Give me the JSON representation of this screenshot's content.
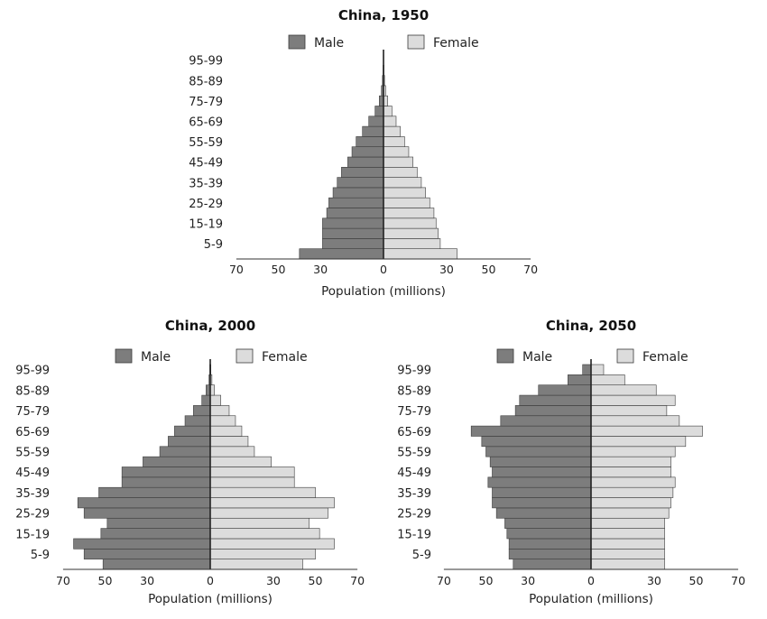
{
  "chart_data": [
    {
      "type": "bar",
      "orientation": "horizontal-pyramid",
      "title": "China, 1950",
      "xlabel": "Population (millions)",
      "ylabel": "",
      "xlim": [
        -70,
        70
      ],
      "xticks": [
        70,
        50,
        30,
        0,
        30,
        50,
        70
      ],
      "grid": false,
      "legend": {
        "position": "top",
        "entries": [
          "Male",
          "Female"
        ]
      },
      "categories": [
        "0-4",
        "5-9",
        "10-14",
        "15-19",
        "20-24",
        "25-29",
        "30-34",
        "35-39",
        "40-44",
        "45-49",
        "50-54",
        "55-59",
        "60-64",
        "65-69",
        "70-74",
        "75-79",
        "80-84",
        "85-89",
        "90-94",
        "95-99"
      ],
      "category_labels_shown": [
        "5-9",
        "15-19",
        "25-29",
        "35-39",
        "45-49",
        "55-59",
        "65-69",
        "75-79",
        "85-89",
        "95-99"
      ],
      "series": [
        {
          "name": "Male",
          "values": [
            40,
            29,
            29,
            29,
            27,
            26,
            24,
            22,
            20,
            17,
            15,
            13,
            10,
            7,
            4,
            2,
            1,
            0.5,
            0.2,
            0.1
          ]
        },
        {
          "name": "Female",
          "values": [
            35,
            27,
            26,
            25,
            24,
            22,
            20,
            18,
            16,
            14,
            12,
            10,
            8,
            6,
            4,
            2,
            1,
            0.5,
            0.2,
            0.1
          ]
        }
      ]
    },
    {
      "type": "bar",
      "orientation": "horizontal-pyramid",
      "title": "China, 2000",
      "xlabel": "Population (millions)",
      "ylabel": "",
      "xlim": [
        -70,
        70
      ],
      "xticks": [
        70,
        50,
        30,
        0,
        30,
        50,
        70
      ],
      "grid": false,
      "legend": {
        "position": "top",
        "entries": [
          "Male",
          "Female"
        ]
      },
      "categories": [
        "0-4",
        "5-9",
        "10-14",
        "15-19",
        "20-24",
        "25-29",
        "30-34",
        "35-39",
        "40-44",
        "45-49",
        "50-54",
        "55-59",
        "60-64",
        "65-69",
        "70-74",
        "75-79",
        "80-84",
        "85-89",
        "90-94",
        "95-99"
      ],
      "category_labels_shown": [
        "5-9",
        "15-19",
        "25-29",
        "35-39",
        "45-49",
        "55-59",
        "65-69",
        "75-79",
        "85-89",
        "95-99"
      ],
      "series": [
        {
          "name": "Male",
          "values": [
            51,
            60,
            65,
            52,
            49,
            60,
            63,
            53,
            42,
            42,
            32,
            24,
            20,
            17,
            12,
            8,
            4,
            2,
            0.6,
            0.2
          ]
        },
        {
          "name": "Female",
          "values": [
            44,
            50,
            59,
            52,
            47,
            56,
            59,
            50,
            40,
            40,
            29,
            21,
            18,
            15,
            12,
            9,
            5,
            2,
            0.8,
            0.3
          ]
        }
      ]
    },
    {
      "type": "bar",
      "orientation": "horizontal-pyramid",
      "title": "China, 2050",
      "xlabel": "Population (millions)",
      "ylabel": "",
      "xlim": [
        -70,
        70
      ],
      "xticks": [
        70,
        50,
        30,
        0,
        30,
        50,
        70
      ],
      "grid": false,
      "legend": {
        "position": "top",
        "entries": [
          "Male",
          "Female"
        ]
      },
      "categories": [
        "0-4",
        "5-9",
        "10-14",
        "15-19",
        "20-24",
        "25-29",
        "30-34",
        "35-39",
        "40-44",
        "45-49",
        "50-54",
        "55-59",
        "60-64",
        "65-69",
        "70-74",
        "75-79",
        "80-84",
        "85-89",
        "90-94",
        "95-99"
      ],
      "category_labels_shown": [
        "5-9",
        "15-19",
        "25-29",
        "35-39",
        "45-49",
        "55-59",
        "65-69",
        "75-79",
        "85-89",
        "95-99"
      ],
      "series": [
        {
          "name": "Male",
          "values": [
            37,
            39,
            39,
            40,
            41,
            45,
            47,
            47,
            49,
            47,
            48,
            50,
            52,
            57,
            43,
            36,
            34,
            25,
            11,
            4
          ]
        },
        {
          "name": "Female",
          "values": [
            35,
            35,
            35,
            35,
            35,
            37,
            38,
            39,
            40,
            38,
            38,
            40,
            45,
            53,
            42,
            36,
            40,
            31,
            16,
            6
          ]
        }
      ]
    }
  ],
  "colors": {
    "male": "#7d7d7d",
    "female": "#dcdcdc",
    "stroke": "#3a3a3a"
  },
  "legend_swatch_icons": [
    "male-swatch-icon",
    "female-swatch-icon"
  ]
}
